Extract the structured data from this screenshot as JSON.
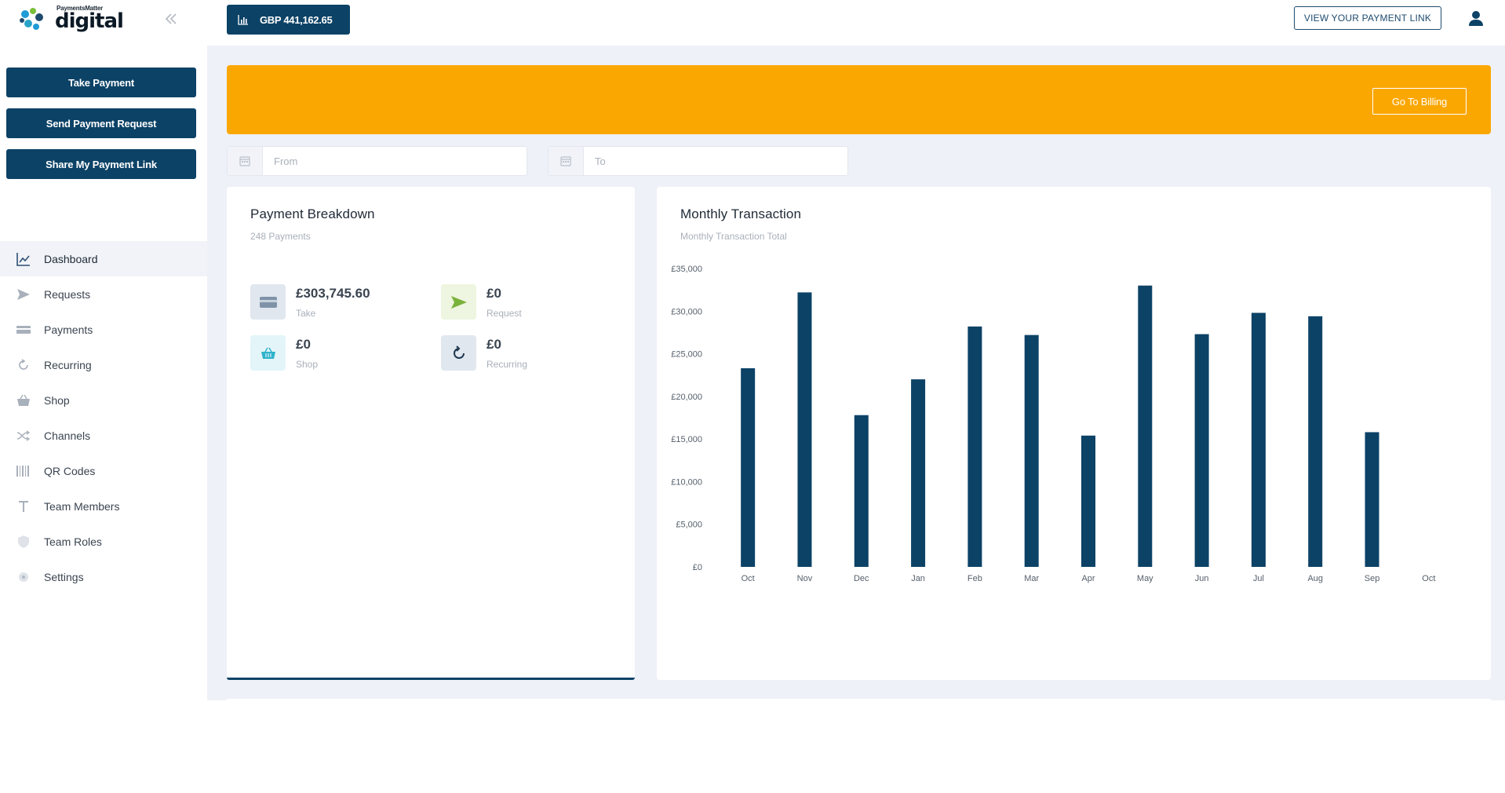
{
  "brand": {
    "small_text": "PaymentsMatter",
    "big_text": "digital"
  },
  "sidebar": {
    "actions": [
      {
        "label": "Take Payment"
      },
      {
        "label": "Send Payment Request"
      },
      {
        "label": "Share My Payment Link"
      }
    ],
    "items": [
      {
        "label": "Dashboard",
        "icon": "chart-line-icon",
        "active": true
      },
      {
        "label": "Requests",
        "icon": "send-icon"
      },
      {
        "label": "Payments",
        "icon": "credit-card-icon"
      },
      {
        "label": "Recurring",
        "icon": "refresh-icon"
      },
      {
        "label": "Shop",
        "icon": "basket-icon"
      },
      {
        "label": "Channels",
        "icon": "shuffle-icon"
      },
      {
        "label": "QR Codes",
        "icon": "barcode-icon"
      },
      {
        "label": "Team Members",
        "icon": "text-t-icon"
      },
      {
        "label": "Team Roles",
        "icon": "shield-icon"
      },
      {
        "label": "Settings",
        "icon": "gear-icon"
      }
    ]
  },
  "topbar": {
    "balance": "GBP 441,162.65",
    "view_link": "VIEW YOUR PAYMENT LINK"
  },
  "banner": {
    "billing_label": "Go To Billing"
  },
  "filters": {
    "from_placeholder": "From",
    "to_placeholder": "To"
  },
  "breakdown": {
    "title": "Payment Breakdown",
    "subtitle": "248 Payments",
    "items": [
      {
        "amount": "£303,745.60",
        "label": "Take"
      },
      {
        "amount": "£0",
        "label": "Request"
      },
      {
        "amount": "£0",
        "label": "Shop"
      },
      {
        "amount": "£0",
        "label": "Recurring"
      }
    ]
  },
  "monthly": {
    "title": "Monthly Transaction",
    "subtitle": "Monthly Transaction Total"
  },
  "colors": {
    "primary": "#0c4266",
    "banner": "#fba702",
    "bar": "#0c4266"
  },
  "chart_data": {
    "type": "bar",
    "categories": [
      "Oct",
      "Nov",
      "Dec",
      "Jan",
      "Feb",
      "Mar",
      "Apr",
      "May",
      "Jun",
      "Jul",
      "Aug",
      "Sep",
      "Oct"
    ],
    "values": [
      23300,
      32200,
      17800,
      22000,
      28200,
      27200,
      15400,
      33000,
      27300,
      29800,
      29400,
      15800,
      0
    ],
    "yticks": [
      "£0",
      "£5,000",
      "£10,000",
      "£15,000",
      "£20,000",
      "£25,000",
      "£30,000",
      "£35,000"
    ],
    "ylim": [
      0,
      35000
    ],
    "grid": false,
    "legend": "none"
  }
}
